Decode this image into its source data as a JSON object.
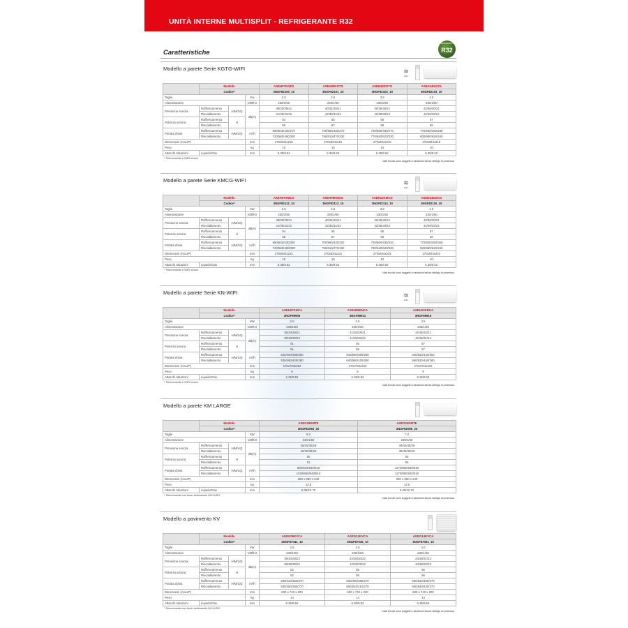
{
  "header": {
    "title": "UNITÀ INTERNE MULTISPLIT - REFRIGERANTE R32"
  },
  "heading": "Caratteristiche",
  "badge": {
    "small": "REFRIGERANTE",
    "label": "R32",
    "color": "#2f5e1e"
  },
  "accent": "#e30613",
  "labels": {
    "modello": "Modello",
    "codice": "Codice*",
    "taglie": "Taglie",
    "alimentazione": "Alimentazione",
    "pressione": "Pressione sonora",
    "potenza": "Potenza sonora",
    "portata": "Portata d'aria",
    "raff": "Raffrescamento",
    "risc": "Riscaldamento",
    "dimensioni": "Dimensioni (AxLxP)",
    "peso": "Peso",
    "attacchi": "Attacchi tubazioni",
    "liquido": "Liquido/Gas",
    "hmlq": "H/M/L/Q",
    "h": "H",
    "u_alim": "V/Ø/Hz",
    "u_db": "dB(A)",
    "u_air": "m³/h",
    "u_mm": "mm",
    "u_kg": "kg",
    "wifi": "WiFi"
  },
  "disclaimer": "I dati tecnici sono soggetti a variazioni senza obbligo di preavviso.",
  "sections": [
    {
      "title": "Modello a parete Serie KGTG-WIFI",
      "wifi": true,
      "unit_kw": "Kw",
      "footnote": "* Telecomando e WIFI inclusi",
      "models": [
        "ASEH07KGTG",
        "ASEH09KGTG",
        "ASEH12KGTG",
        "ASEH14KGTG"
      ],
      "codes": [
        "3NGF82100_10",
        "3NGF82101_10",
        "3NGF82102_10",
        "3NGF82103_10"
      ],
      "taglie": [
        "2.0",
        "2.5",
        "3.5",
        "4.0"
      ],
      "alim": [
        "230/1/50",
        "230/1/50",
        "230/1/50",
        "230/1/50"
      ],
      "press_raff": [
        "38/33/29/21",
        "40/34/29/21",
        "40/35/30/21",
        "43/36/30/21"
      ],
      "press_risc": [
        "41/35/31/22",
        "42/36/31/22",
        "42/38/33/22",
        "44/39/33/24"
      ],
      "pot_raff": [
        "54",
        "55",
        "56",
        "57"
      ],
      "pot_risc": [
        "56",
        "57",
        "58",
        "59"
      ],
      "air_raff": [
        "650/540/430/270",
        "700/560/430/270",
        "700/560/430/270",
        "770/600/450/280"
      ],
      "air_risc": [
        "720/560/460/330",
        "750/610/470/330",
        "770/640/520/330",
        "800/660/520/340"
      ],
      "dim": [
        "270x834x215",
        "270x834x215",
        "270x834x215",
        "270x834x215"
      ],
      "peso": [
        "10",
        "10",
        "10",
        "10"
      ],
      "att": [
        "6.35/9.52",
        "6.35/9.52",
        "6.35/9.52",
        "6.35/9.52"
      ]
    },
    {
      "title": "Modello a parete Serie KMCG-WIFI",
      "wifi": true,
      "unit_kw": "kW",
      "footnote": "* Telecomando e WIFI inclusi",
      "models": [
        "ASEH07KMCG",
        "ASEH09KMCG",
        "ASEH12KMCG",
        "ASEH14KMCG"
      ],
      "codes": [
        "3NGF82112_10",
        "3NGF82113_10",
        "3NGF82114_10",
        "3NGF82115_10"
      ],
      "taglie": [
        "2.0",
        "2.5",
        "3.5",
        "4.0"
      ],
      "alim": [
        "230/1/50",
        "230/1/50",
        "230/1/50",
        "230/1/50"
      ],
      "press_raff": [
        "38/33/29/21",
        "40/34/29/21",
        "40/35/30/21",
        "43/36/30/21"
      ],
      "press_risc": [
        "41/35/31/22",
        "42/36/31/22",
        "42/38/33/22",
        "44/39/33/24"
      ],
      "pot_raff": [
        "54",
        "55",
        "55",
        "57"
      ],
      "pot_risc": [
        "56",
        "57",
        "56",
        "59"
      ],
      "air_raff": [
        "650/540/430/320",
        "700/560/430/320",
        "700/560/430/320",
        "770/600/450/350"
      ],
      "air_risc": [
        "720/560/460/330",
        "750/610/470/330",
        "780/640/520/330",
        "820/660/520/340"
      ],
      "dim": [
        "270x834x222",
        "270x834x222",
        "270x834x222",
        "270x834x222"
      ],
      "peso": [
        "10",
        "10",
        "10",
        "10"
      ],
      "att": [
        "6.35/9.52",
        "6.35/9.52",
        "6.35/9.52",
        "6.35/9.52"
      ]
    },
    {
      "title": "Modello a parete Serie KN-WIFI",
      "wifi": true,
      "unit_kw": "kW",
      "footnote": "* Telecomando e WIFI inclusi",
      "models": [
        "ASEH07KNCA",
        "ASEH09KNCA",
        "ASEH12KNCA"
      ],
      "codes": [
        "3NGF89906",
        "3NGF89911",
        "3NGF89916"
      ],
      "taglie": [
        "2.0",
        "2.5",
        "3.5"
      ],
      "alim": [
        "230/1/50",
        "230/1/50",
        "230/1/50"
      ],
      "press_raff": [
        "36/33/28/21",
        "41/35/28/21",
        "42/36/32/21"
      ],
      "press_risc": [
        "36/33/30/22",
        "41/36/30/22",
        "42/35/31/22"
      ],
      "pot_raff": [
        "51",
        "56",
        "57"
      ],
      "pot_risc": [
        "51",
        "56",
        "57"
      ],
      "air_raff": [
        "530/460/390/250",
        "640/560/390/250",
        "660/520/440/250"
      ],
      "air_risc": [
        "530/460/420/280",
        "640/560/420/280",
        "660/520/440/280"
      ],
      "dim": [
        "270x784x222",
        "270x784x222",
        "270x784x222"
      ],
      "peso": [
        "9",
        "9",
        "9"
      ],
      "att": [
        "6.35/9.52",
        "6.35/9.52",
        "6.35/9.52"
      ]
    },
    {
      "title": "Modello a parete KM LARGE",
      "wifi": false,
      "unit_kw": "kW",
      "footnote": "* Telecomando con timer settimanale INCLUSO",
      "models": [
        "ASEG18KMTE",
        "ASEG24KMTE"
      ],
      "codes": [
        "3NGF82083_20",
        "3NGF82086_20"
      ],
      "taglie": [
        "5.0",
        "7.0"
      ],
      "alim": [
        "230/1/50",
        "230/1/50"
      ],
      "press_raff": [
        "45/40/35/29",
        "49/40/35/29"
      ],
      "press_risc": [
        "46/40/35/29",
        "49/40/35/29"
      ],
      "pot_raff": [
        "60",
        "65"
      ],
      "pot_risc": [
        "61",
        "65"
      ],
      "air_raff": [
        "960/810/640/510",
        "1170/850/640/510"
      ],
      "air_risc": [
        "1020/850/640/510",
        "1170/850/640/510"
      ],
      "dim": [
        "280 x 980 x 240",
        "280 x 980 x 240"
      ],
      "peso": [
        "12.5",
        "12.5"
      ],
      "att": [
        "6.35/12.70",
        "6.35/12.70"
      ]
    },
    {
      "title": "Modello a pavimento KV",
      "wifi": false,
      "floor": true,
      "unit_kw": "kW",
      "footnote": "* Telecomando con timer settimanale INCLUSO",
      "models": [
        "AGEG09KVCA",
        "AGEG12KVCA",
        "AGEG14KVCA"
      ],
      "codes": [
        "3NGF87041_10",
        "3NGF87046_10",
        "3NGF87051_10"
      ],
      "taglie": [
        "2.5",
        "3.5",
        "4.0"
      ],
      "alim": [
        "230/1/50",
        "230/1/50",
        "230/1/50"
      ],
      "press_raff": [
        "39/34/28/22",
        "42/36/30/22",
        "44/38/31/22"
      ],
      "press_risc": [
        "39/35/30/22",
        "42/38/32/22",
        "44/39/32/22"
      ],
      "pot_raff": [
        "52",
        "55",
        "56"
      ],
      "pot_risc": [
        "52",
        "55",
        "56"
      ],
      "air_raff": [
        "530/440/360/270",
        "600/490/380/270",
        "650/520/400/270"
      ],
      "air_risc": [
        "530/460/380/270",
        "600/510/410/270",
        "650/540/430/270"
      ],
      "dim": [
        "600 x 740 x 200",
        "600 x 740 x 200",
        "600 x 740 x 200"
      ],
      "peso": [
        "14",
        "14",
        "14"
      ],
      "att": [
        "6.35/9.52",
        "6.35/9.52",
        "6.35/9.52"
      ]
    }
  ]
}
